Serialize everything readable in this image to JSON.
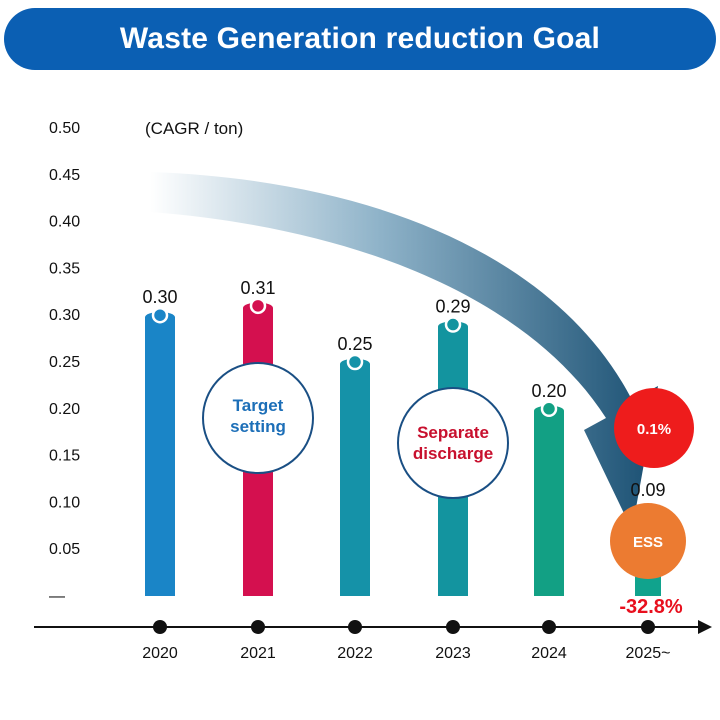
{
  "title": "Waste Generation reduction Goal",
  "colors": {
    "banner": "#0b5fb3",
    "bar_2020": "#1a85c7",
    "bar_2021": "#d4104f",
    "bar_2022": "#1592a8",
    "bar_2023": "#13949f",
    "bar_2024": "#12a084",
    "bar_2025": "#10a38d",
    "arrow_dark": "#194f72",
    "badge_red": "#ee1c1c",
    "badge_orange": "#ec7b31",
    "percent_red": "#e8101e"
  },
  "chart_data": {
    "type": "bar",
    "unit_label": "(CAGR / ton)",
    "categories": [
      "2020",
      "2021",
      "2022",
      "2023",
      "2024",
      "2025~"
    ],
    "values": [
      0.3,
      0.31,
      0.25,
      0.29,
      0.2,
      0.09
    ],
    "value_labels": [
      "0.30",
      "0.31",
      "0.25",
      "0.29",
      "0.20",
      "0.09"
    ],
    "ylim": [
      0,
      0.5
    ],
    "y_ticks": [
      "0.50",
      "0.45",
      "0.40",
      "0.35",
      "0.30",
      "0.25",
      "0.20",
      "0.15",
      "0.10",
      "0.05",
      "—"
    ],
    "y_tick_values": [
      0.5,
      0.45,
      0.4,
      0.35,
      0.3,
      0.25,
      0.2,
      0.15,
      0.1,
      0.05,
      0
    ],
    "annotations": {
      "target_setting": [
        "Target",
        "setting"
      ],
      "separate_discharge": [
        "Separate",
        "discharge"
      ],
      "badge_percent": "0.1%",
      "badge_ess": "ESS",
      "reduction": "-32.8%"
    }
  }
}
